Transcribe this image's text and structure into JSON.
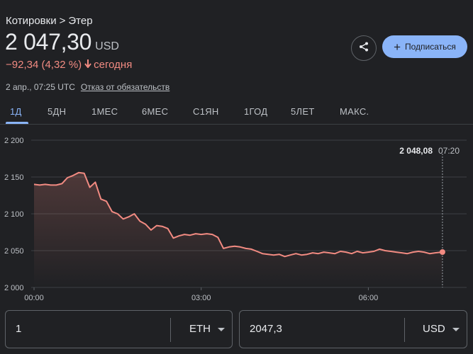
{
  "breadcrumb": {
    "parent": "Котировки",
    "separator": ">",
    "current": "Этер"
  },
  "price": {
    "value": "2 047,30",
    "currency": "USD"
  },
  "change": {
    "text": "−92,34 (4,32 %)",
    "arrow": "🡓",
    "period": "сегодня",
    "color": "#f28b82"
  },
  "meta": {
    "timestamp": "2 апр., 07:25 UTC",
    "disclaimer": "Отказ от обязательств"
  },
  "actions": {
    "share_icon": "share-icon",
    "follow_label": "Подписаться",
    "follow_icon": "+"
  },
  "tabs": [
    {
      "label": "1Д",
      "active": true
    },
    {
      "label": "5ДН"
    },
    {
      "label": "1МЕС"
    },
    {
      "label": "6МЕС"
    },
    {
      "label": "С1ЯН"
    },
    {
      "label": "1ГОД"
    },
    {
      "label": "5ЛЕТ"
    },
    {
      "label": "МАКС."
    }
  ],
  "chart_data": {
    "type": "line",
    "y_ticks": [
      "2 200",
      "2 150",
      "2 100",
      "2 050",
      "2 000"
    ],
    "x_ticks": [
      "00:00",
      "03:00",
      "06:00"
    ],
    "ylim": [
      2000,
      2200
    ],
    "xlim": [
      0,
      7.7
    ],
    "line_color": "#f28b82",
    "hover_value": "2 048,08",
    "hover_time": "07:20",
    "series": [
      {
        "x": [
          0.0,
          0.1,
          0.2,
          0.3,
          0.4,
          0.5,
          0.6,
          0.7,
          0.8,
          0.9,
          1.0,
          1.1,
          1.2,
          1.3,
          1.4,
          1.5,
          1.6,
          1.7,
          1.8,
          1.9,
          2.0,
          2.1,
          2.2,
          2.3,
          2.4,
          2.5,
          2.6,
          2.7,
          2.8,
          2.9,
          3.0,
          3.1,
          3.2,
          3.3,
          3.4,
          3.5,
          3.6,
          3.7,
          3.8,
          3.9,
          4.0,
          4.1,
          4.2,
          4.3,
          4.4,
          4.5,
          4.6,
          4.7,
          4.8,
          4.9,
          5.0,
          5.1,
          5.2,
          5.3,
          5.4,
          5.5,
          5.6,
          5.7,
          5.8,
          5.9,
          6.0,
          6.1,
          6.2,
          6.3,
          6.4,
          6.5,
          6.6,
          6.7,
          6.8,
          6.9,
          7.0,
          7.1,
          7.2,
          7.33
        ],
        "y": [
          2140,
          2139,
          2140,
          2139,
          2139,
          2141,
          2149,
          2152,
          2156,
          2155,
          2136,
          2143,
          2120,
          2117,
          2103,
          2100,
          2093,
          2096,
          2100,
          2090,
          2086,
          2078,
          2084,
          2083,
          2080,
          2067,
          2070,
          2072,
          2071,
          2073,
          2072,
          2073,
          2072,
          2068,
          2053,
          2055,
          2056,
          2055,
          2053,
          2052,
          2049,
          2046,
          2045,
          2044,
          2045,
          2042,
          2044,
          2046,
          2044,
          2045,
          2047,
          2046,
          2048,
          2047,
          2046,
          2049,
          2048,
          2046,
          2049,
          2047,
          2048,
          2049,
          2052,
          2050,
          2049,
          2048,
          2047,
          2046,
          2048,
          2049,
          2048,
          2046,
          2047,
          2048.08
        ]
      }
    ]
  },
  "converter": {
    "from_value": "1",
    "from_currency": "ETH",
    "to_value": "2047,3",
    "to_currency": "USD"
  }
}
